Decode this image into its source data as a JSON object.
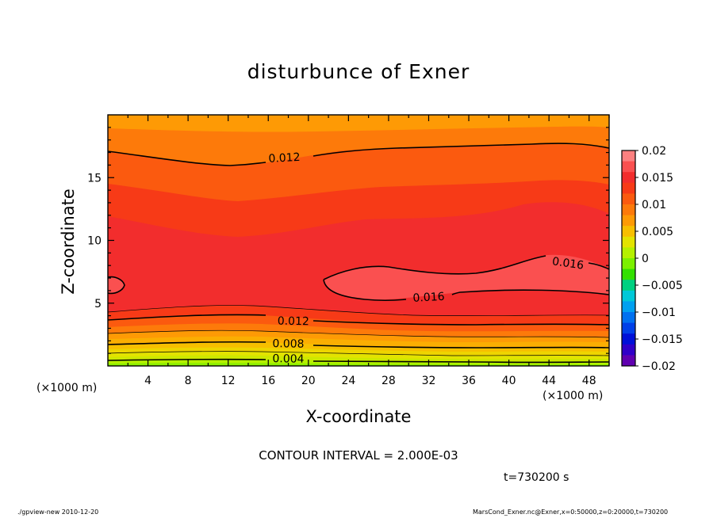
{
  "chart_data": {
    "type": "contour",
    "title": "disturbunce of Exner",
    "xlabel": "X-coordinate",
    "ylabel": "Z-coordinate",
    "x_unit": "(×1000 m)",
    "xlim": [
      0,
      50
    ],
    "ylim": [
      0,
      20
    ],
    "x_ticks": [
      4,
      8,
      12,
      16,
      20,
      24,
      28,
      32,
      36,
      40,
      44,
      48
    ],
    "y_ticks": [
      5,
      10,
      15
    ],
    "contour_interval_text": "CONTOUR INTERVAL = 2.000E-03",
    "contour_interval": 0.002,
    "time_text": "t=730200 s",
    "contour_labels": [
      {
        "text": "0.012",
        "x": 17.6,
        "z": 16.6
      },
      {
        "text": "0.016",
        "x": 45.9,
        "z": 8.2
      },
      {
        "text": "0.016",
        "x": 32.0,
        "z": 5.5
      },
      {
        "text": "0.012",
        "x": 18.5,
        "z": 3.6
      },
      {
        "text": "0.008",
        "x": 18.0,
        "z": 1.8
      },
      {
        "text": "0.004",
        "x": 18.0,
        "z": 0.6
      }
    ],
    "colorbar": {
      "labels": [
        "0.02",
        "0.015",
        "0.01",
        "0.005",
        "0",
        "−0.005",
        "−0.01",
        "−0.015",
        "−0.02"
      ],
      "min": -0.02,
      "max": 0.02,
      "colors": [
        "#fc8080",
        "#fa5050",
        "#f22d2d",
        "#f73a17",
        "#fb5a0f",
        "#fd7a0a",
        "#fe9a05",
        "#f7bf00",
        "#e3e300",
        "#b5f000",
        "#7cf000",
        "#33e000",
        "#00d080",
        "#00c8d8",
        "#00a0f0",
        "#0070f0",
        "#0040e8",
        "#0010d8",
        "#3000c8",
        "#6000b0"
      ]
    },
    "footer_left": "./gpview-new  2010-12-20",
    "footer_right": "MarsCond_Exner.nc@Exner,x=0:50000,z=0:20000,t=730200"
  }
}
